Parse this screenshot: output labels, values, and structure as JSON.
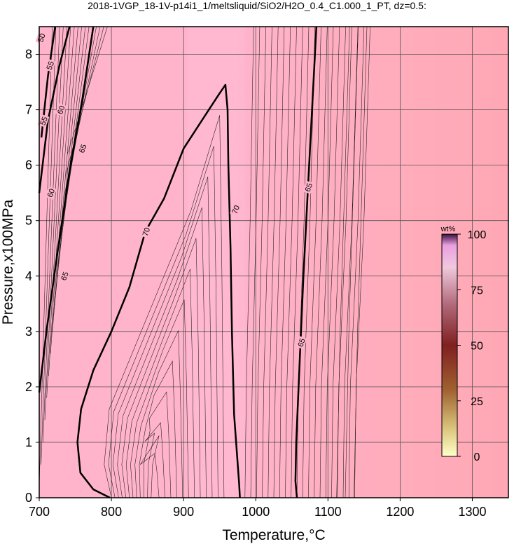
{
  "chart_data": {
    "type": "contour",
    "title": "2018-1VGP_18-1V-p14i1_1/meltsliquid/SiO2/H2O_0.4_C1.000_1_PT, dz=0.5:",
    "xlabel": "Temperature,°C",
    "ylabel": "Pressure,x100MPa",
    "xlim": [
      700,
      1350
    ],
    "ylim": [
      0,
      8.5
    ],
    "x_ticks": [
      "700",
      "800",
      "900",
      "1000",
      "1100",
      "1200",
      "1300"
    ],
    "y_ticks": [
      "0",
      "1",
      "2",
      "3",
      "4",
      "5",
      "6",
      "7",
      "8"
    ],
    "grid": true,
    "colorbar": {
      "label": "wt%",
      "ticks": [
        "0",
        "25",
        "50",
        "75",
        "100"
      ],
      "range": [
        0,
        100
      ]
    },
    "contour_labels": [
      {
        "text": "50",
        "x": 703,
        "y": 8.3
      },
      {
        "text": "55",
        "x": 715,
        "y": 7.8
      },
      {
        "text": "55",
        "x": 706,
        "y": 6.8
      },
      {
        "text": "60",
        "x": 730,
        "y": 7.0
      },
      {
        "text": "60",
        "x": 716,
        "y": 5.5
      },
      {
        "text": "65",
        "x": 760,
        "y": 6.3
      },
      {
        "text": "65",
        "x": 735,
        "y": 4.0
      },
      {
        "text": "70",
        "x": 848,
        "y": 4.8
      },
      {
        "text": "70",
        "x": 972,
        "y": 5.2
      },
      {
        "text": "65",
        "x": 1073,
        "y": 5.6
      },
      {
        "text": "65",
        "x": 1063,
        "y": 2.8
      }
    ],
    "bold_contours": [
      {
        "level": 55,
        "points": [
          [
            703,
            6.5
          ],
          [
            712,
            7.6
          ],
          [
            722,
            8.5
          ]
        ]
      },
      {
        "level": 60,
        "points": [
          [
            700,
            5.5
          ],
          [
            712,
            6.8
          ],
          [
            728,
            7.8
          ],
          [
            742,
            8.5
          ]
        ]
      },
      {
        "level": 65,
        "points": [
          [
            700,
            1.9
          ],
          [
            710,
            3.0
          ],
          [
            725,
            4.4
          ],
          [
            742,
            5.9
          ],
          [
            760,
            7.2
          ],
          [
            775,
            8.5
          ]
        ]
      },
      {
        "level": 70,
        "points": [
          [
            798,
            0
          ],
          [
            775,
            0.15
          ],
          [
            757,
            0.45
          ],
          [
            753,
            1.0
          ],
          [
            758,
            1.6
          ],
          [
            775,
            2.3
          ],
          [
            800,
            3.0
          ],
          [
            825,
            3.8
          ],
          [
            847,
            4.8
          ],
          [
            873,
            5.4
          ],
          [
            900,
            6.3
          ],
          [
            935,
            7.0
          ],
          [
            950,
            7.3
          ],
          [
            958,
            7.45
          ],
          [
            961,
            7.0
          ],
          [
            962,
            6.0
          ],
          [
            965,
            4.5
          ],
          [
            967,
            3.0
          ],
          [
            970,
            1.5
          ],
          [
            975,
            0.6
          ],
          [
            977,
            0.25
          ],
          [
            978,
            0
          ]
        ]
      },
      {
        "level": 65,
        "points": [
          [
            1057,
            0
          ],
          [
            1055,
            0.3
          ],
          [
            1056,
            1.0
          ],
          [
            1061,
            2.5
          ],
          [
            1066,
            4.0
          ],
          [
            1072,
            5.5
          ],
          [
            1078,
            7.0
          ],
          [
            1084,
            8.5
          ]
        ]
      }
    ]
  }
}
